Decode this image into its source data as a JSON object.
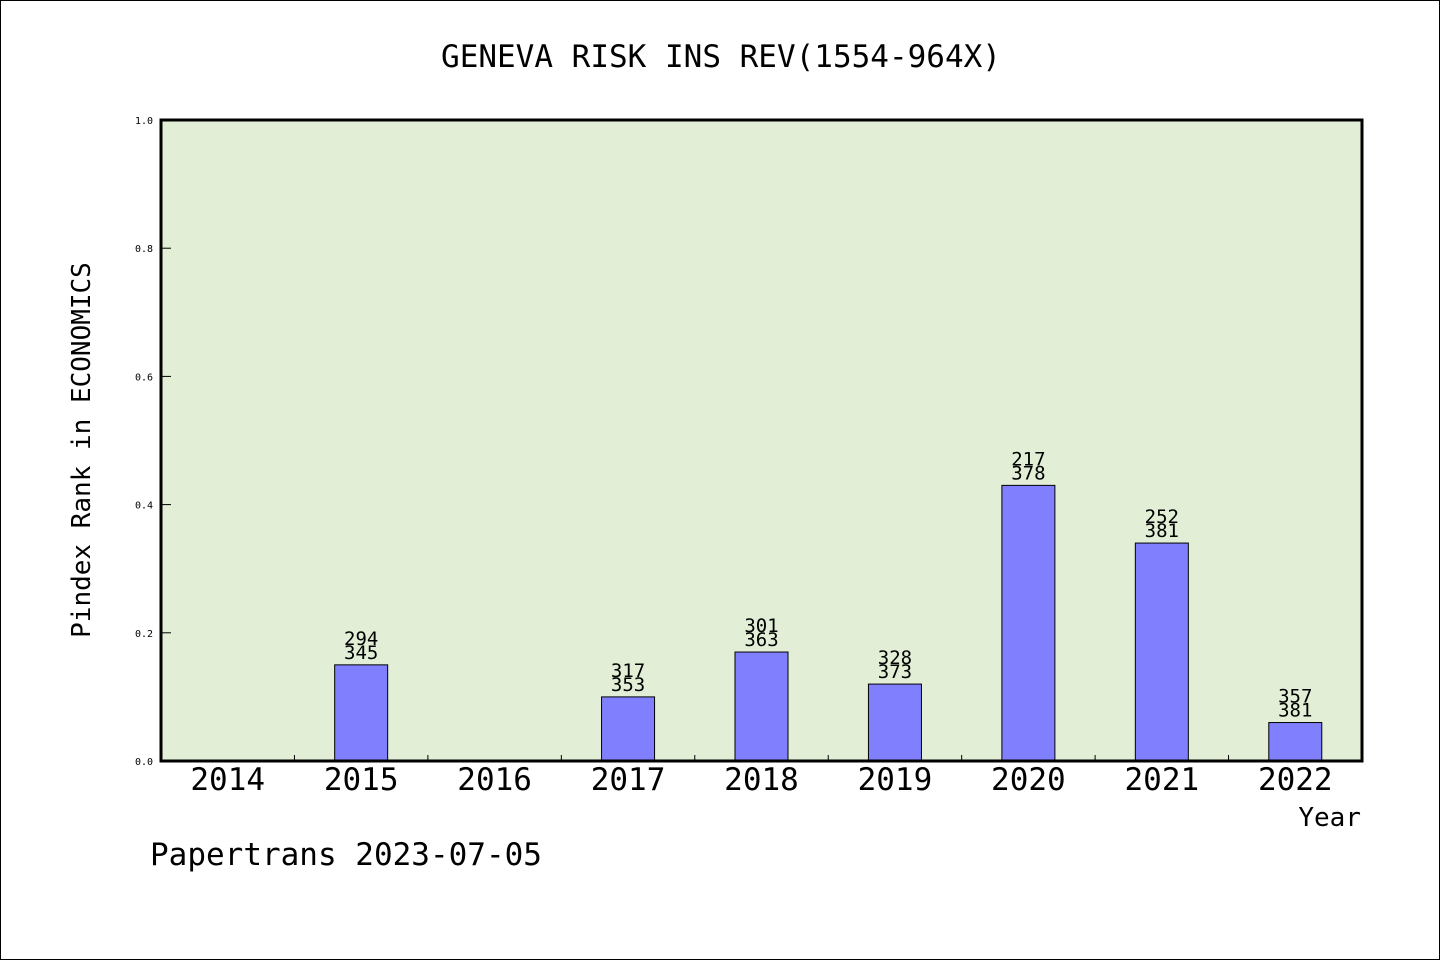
{
  "chart_data": {
    "type": "bar",
    "title": "GENEVA RISK INS REV(1554-964X)",
    "xlabel": "Year",
    "ylabel": "Pindex Rank in ECONOMICS",
    "ylim": [
      0,
      1.0
    ],
    "y_ticks": [
      "0.0",
      "0.2",
      "0.4",
      "0.6",
      "0.8",
      "1.0"
    ],
    "categories": [
      "2014",
      "2015",
      "2016",
      "2017",
      "2018",
      "2019",
      "2020",
      "2021",
      "2022"
    ],
    "values": [
      null,
      0.15,
      null,
      0.1,
      0.17,
      0.12,
      0.43,
      0.34,
      0.06
    ],
    "label_top": [
      null,
      "294",
      null,
      "317",
      "301",
      "328",
      "217",
      "252",
      "357"
    ],
    "label_bottom": [
      null,
      "345",
      null,
      "353",
      "363",
      "373",
      "378",
      "381",
      "381"
    ],
    "grid": false,
    "colors": {
      "plot_background": "#e2efd6",
      "bar_fill": "#8080ff",
      "bar_stroke": "#000000"
    }
  },
  "footer": {
    "credit": "Papertrans 2023-07-05"
  }
}
